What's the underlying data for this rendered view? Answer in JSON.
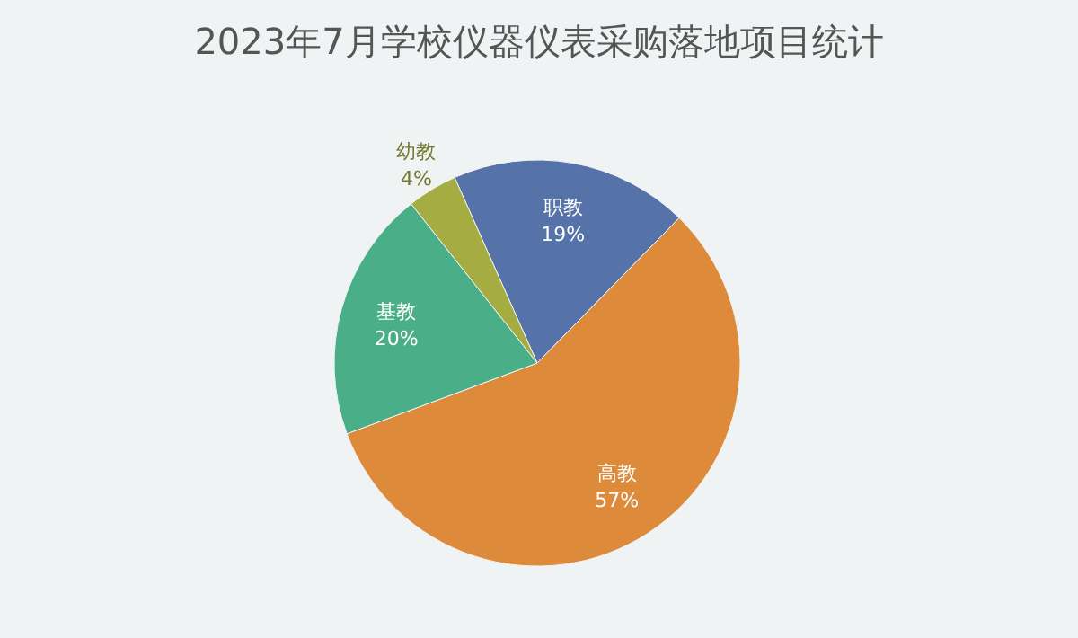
{
  "chart_data": {
    "type": "pie",
    "title": "2023年7月学校仪器仪表采购落地项目统计",
    "categories": [
      "职教",
      "高教",
      "基教",
      "幼教"
    ],
    "values": [
      19,
      57,
      20,
      4
    ],
    "colors": [
      "#5572a9",
      "#dd8b3b",
      "#4aae89",
      "#a5ad42"
    ],
    "value_labels": [
      "19%",
      "57%",
      "20%",
      "4%"
    ]
  }
}
